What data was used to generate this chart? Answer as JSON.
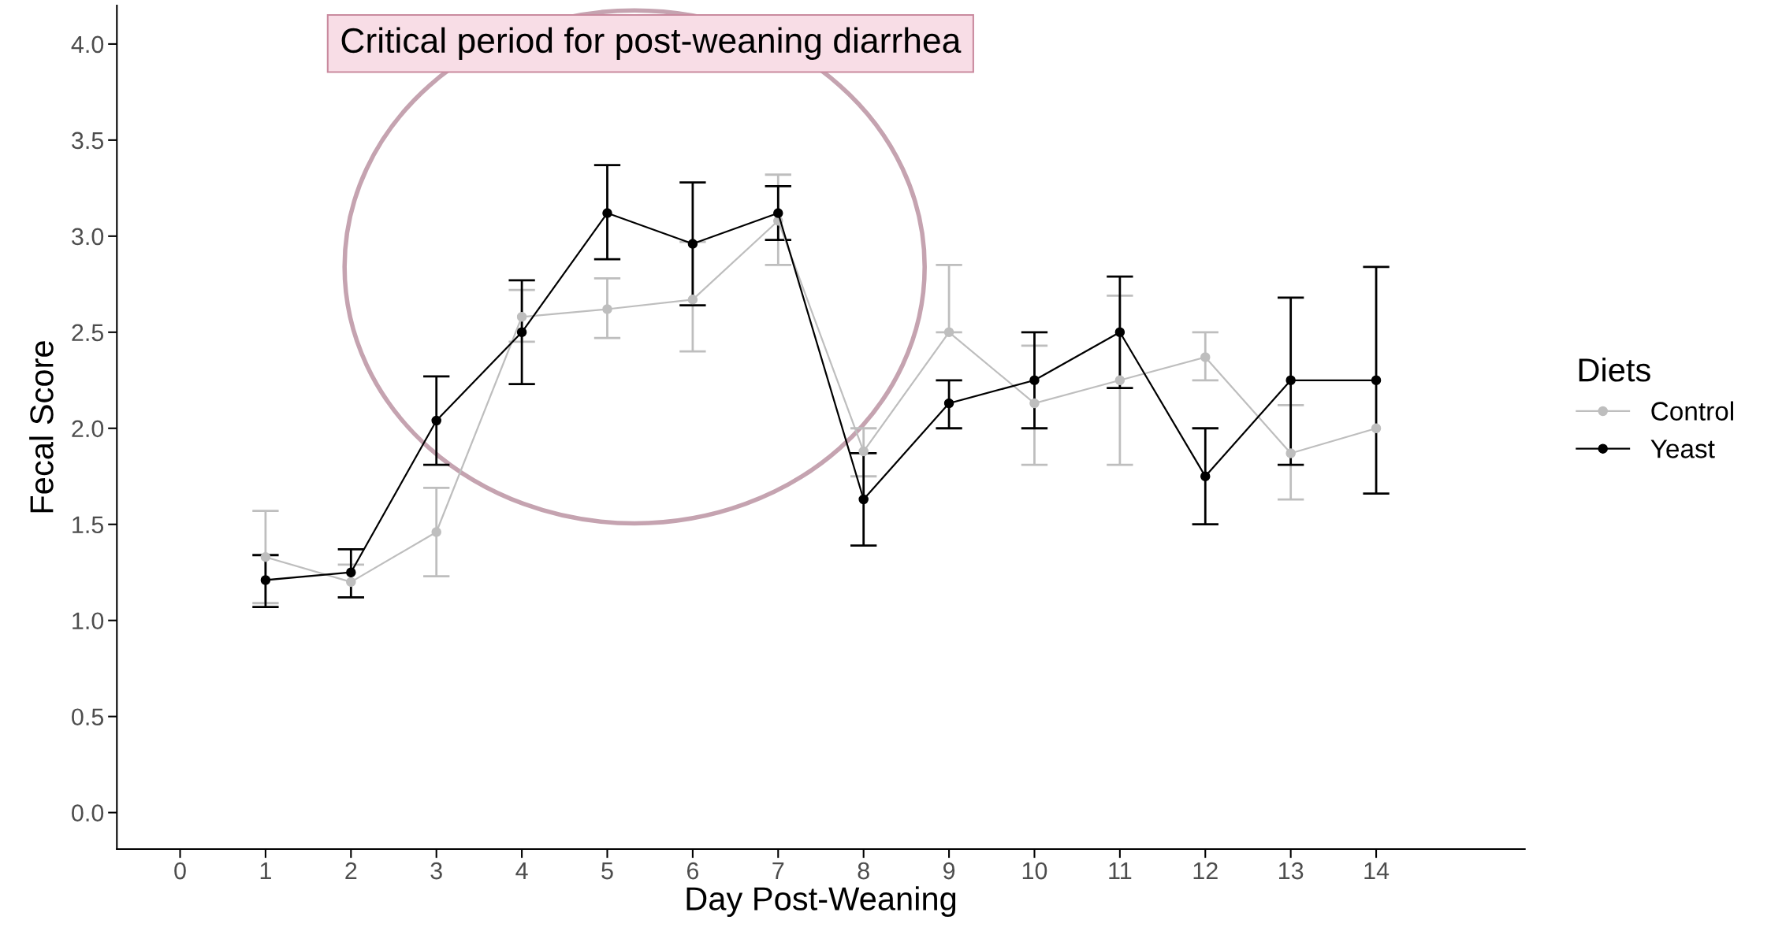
{
  "chart_data": {
    "type": "line",
    "xlabel": "Day Post-Weaning",
    "ylabel": "Fecal Score",
    "legend_title": "Diets",
    "legend": "right",
    "grid": false,
    "marker": "circle",
    "line_style": "solid",
    "annotations": [
      "Critical period for post-weaning diarrhea"
    ],
    "x": [
      1,
      2,
      3,
      4,
      5,
      6,
      7,
      8,
      9,
      10,
      11,
      12,
      13,
      14
    ],
    "xlim": [
      -0.74,
      15.74
    ],
    "xticks": [
      0,
      1,
      2,
      3,
      4,
      5,
      6,
      7,
      8,
      9,
      10,
      11,
      12,
      13,
      14
    ],
    "ylim": [
      -0.19,
      4.2
    ],
    "yticks": [
      {
        "value": 0,
        "label": "0.0"
      },
      {
        "value": 0.5,
        "label": "0.5"
      },
      {
        "value": 1,
        "label": "1.0"
      },
      {
        "value": 1.5,
        "label": "1.5"
      },
      {
        "value": 2,
        "label": "2.0"
      },
      {
        "value": 2.5,
        "label": "2.5"
      },
      {
        "value": 3,
        "label": "3.0"
      },
      {
        "value": 3.5,
        "label": "3.5"
      },
      {
        "value": 4,
        "label": "4.0"
      }
    ],
    "series": [
      {
        "name": "Control",
        "color": "#bebebe",
        "values": [
          1.33,
          1.2,
          1.46,
          2.58,
          2.62,
          2.67,
          3.08,
          1.88,
          2.5,
          2.13,
          2.25,
          2.37,
          1.87,
          2.0
        ],
        "errors": [
          [
            1.09,
            1.57
          ],
          [
            1.12,
            1.29
          ],
          [
            1.23,
            1.69
          ],
          [
            2.45,
            2.72
          ],
          [
            2.47,
            2.78
          ],
          [
            2.4,
            2.97
          ],
          [
            2.85,
            3.32
          ],
          [
            1.75,
            2.0
          ],
          [
            2.5,
            2.85
          ],
          [
            1.81,
            2.43
          ],
          [
            1.81,
            2.69
          ],
          [
            2.25,
            2.5
          ],
          [
            1.63,
            2.12
          ],
          [
            null,
            null
          ]
        ]
      },
      {
        "name": "Yeast",
        "color": "#000000",
        "values": [
          1.21,
          1.25,
          2.04,
          2.5,
          3.12,
          2.96,
          3.12,
          1.63,
          2.13,
          2.25,
          2.5,
          1.75,
          2.25,
          2.25
        ],
        "errors": [
          [
            1.07,
            1.34
          ],
          [
            1.12,
            1.37
          ],
          [
            1.81,
            2.27
          ],
          [
            2.23,
            2.77
          ],
          [
            2.88,
            3.37
          ],
          [
            2.64,
            3.28
          ],
          [
            2.98,
            3.26
          ],
          [
            1.39,
            1.87
          ],
          [
            2.0,
            2.25
          ],
          [
            2.0,
            2.5
          ],
          [
            2.21,
            2.79
          ],
          [
            1.5,
            2.0
          ],
          [
            1.81,
            2.68
          ],
          [
            1.66,
            2.84
          ]
        ]
      }
    ]
  }
}
